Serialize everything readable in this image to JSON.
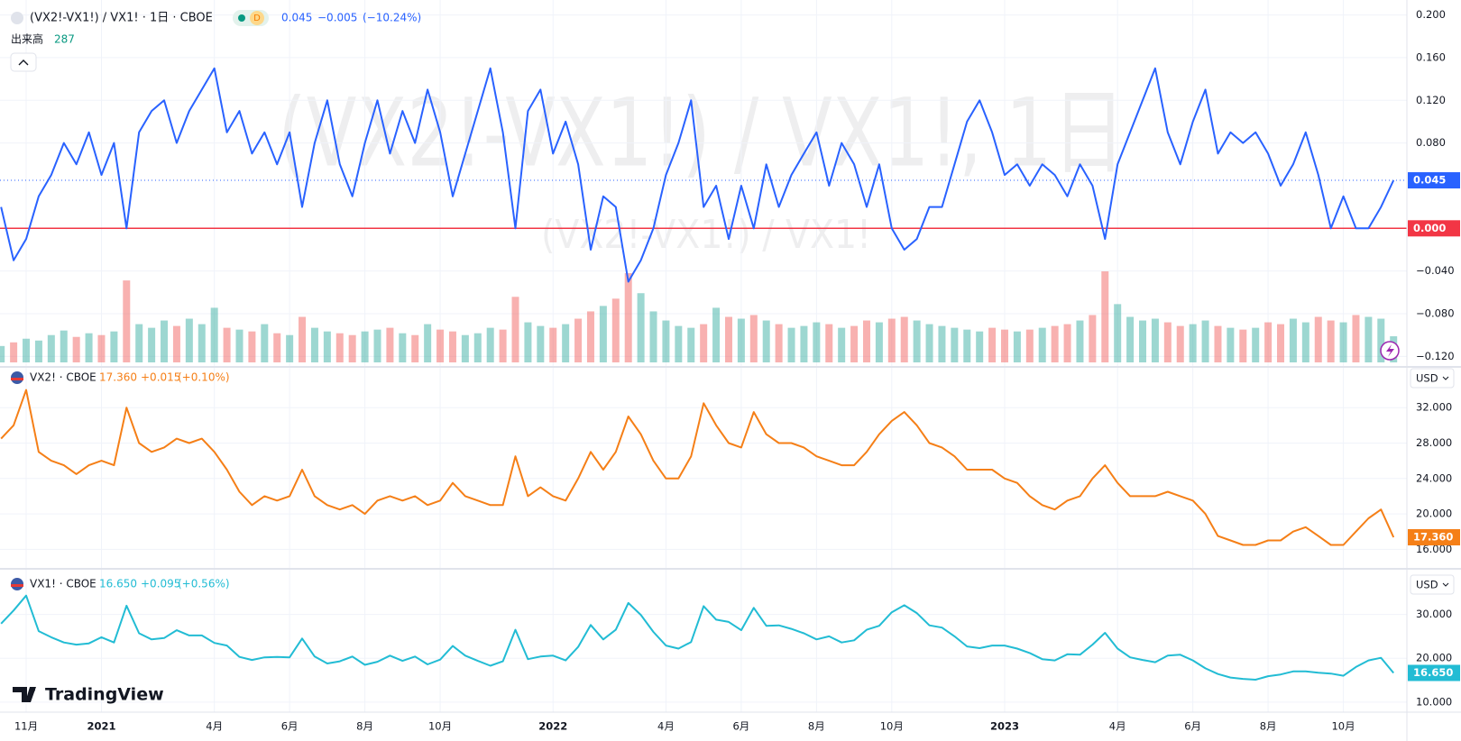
{
  "header": {
    "badge": "D",
    "change": "−0.005",
    "change_pct": "(−10.24%)"
  },
  "watermark": {
    "main": "(VX2!-VX1!) / VX1!, 1日",
    "sub": "(VX2!-VX1!) / VX1!"
  },
  "logo": "TradingView",
  "currency": "USD",
  "chart_data": [
    {
      "type": "line",
      "series": [
        {
          "name": "(VX2!-VX1!) / VX1! · 1日 · CBOE",
          "color": "#2962ff",
          "values": [
            0.02,
            -0.03,
            -0.01,
            0.03,
            0.05,
            0.08,
            0.06,
            0.09,
            0.05,
            0.08,
            0.0,
            0.09,
            0.11,
            0.12,
            0.08,
            0.11,
            0.13,
            0.15,
            0.09,
            0.11,
            0.07,
            0.09,
            0.06,
            0.09,
            0.02,
            0.08,
            0.12,
            0.06,
            0.03,
            0.08,
            0.12,
            0.07,
            0.11,
            0.08,
            0.13,
            0.09,
            0.03,
            0.07,
            0.11,
            0.15,
            0.09,
            0.0,
            0.11,
            0.13,
            0.07,
            0.1,
            0.06,
            -0.02,
            0.03,
            0.02,
            -0.05,
            -0.03,
            0.0,
            0.05,
            0.08,
            0.12,
            0.02,
            0.04,
            -0.01,
            0.04,
            0.0,
            0.06,
            0.02,
            0.05,
            0.07,
            0.09,
            0.04,
            0.08,
            0.06,
            0.02,
            0.06,
            0.0,
            -0.02,
            -0.01,
            0.02,
            0.02,
            0.06,
            0.1,
            0.12,
            0.09,
            0.05,
            0.06,
            0.04,
            0.06,
            0.05,
            0.03,
            0.06,
            0.04,
            -0.01,
            0.06,
            0.09,
            0.12,
            0.15,
            0.09,
            0.06,
            0.1,
            0.13,
            0.07,
            0.09,
            0.08,
            0.09,
            0.07,
            0.04,
            0.06,
            0.09,
            0.05,
            0.0,
            0.03,
            0.0,
            0.0,
            0.02,
            0.045
          ]
        }
      ],
      "volume": {
        "name": "出来高",
        "up_color": "#26a69a",
        "down_color": "#ef5350",
        "values": [
          180,
          220,
          260,
          240,
          300,
          350,
          280,
          320,
          300,
          340,
          900,
          420,
          380,
          460,
          400,
          480,
          420,
          600,
          380,
          360,
          340,
          420,
          320,
          300,
          500,
          380,
          340,
          320,
          300,
          340,
          360,
          380,
          320,
          300,
          420,
          360,
          340,
          300,
          320,
          380,
          360,
          720,
          440,
          400,
          380,
          420,
          480,
          560,
          620,
          700,
          980,
          760,
          560,
          460,
          400,
          380,
          420,
          600,
          500,
          480,
          520,
          460,
          420,
          380,
          400,
          440,
          420,
          380,
          400,
          460,
          440,
          480,
          500,
          460,
          420,
          400,
          380,
          360,
          340,
          380,
          360,
          340,
          360,
          380,
          400,
          420,
          460,
          520,
          1000,
          640,
          500,
          460,
          480,
          440,
          400,
          420,
          460,
          400,
          380,
          360,
          380,
          440,
          420,
          480,
          440,
          500,
          460,
          440,
          520,
          500,
          480,
          287
        ]
      },
      "zero_line": {
        "value": 0,
        "label": "0.000",
        "color": "#f23645"
      },
      "ylim": [
        -0.129,
        0.214
      ],
      "yticks": [
        {
          "value": 0.2,
          "label": "0.200"
        },
        {
          "value": 0.16,
          "label": "0.160"
        },
        {
          "value": 0.12,
          "label": "0.120"
        },
        {
          "value": 0.08,
          "label": "0.080"
        },
        {
          "value": -0.04,
          "label": "−0.040"
        },
        {
          "value": -0.08,
          "label": "−0.080"
        },
        {
          "value": -0.12,
          "label": "−0.120"
        }
      ],
      "grid": true
    },
    {
      "type": "line",
      "series": [
        {
          "name": "VX2! · CBOE",
          "color": "#f57f17",
          "values": [
            28.5,
            30,
            34,
            27,
            26,
            25.5,
            24.5,
            25.5,
            26,
            25.5,
            32,
            28,
            27,
            27.5,
            28.5,
            28,
            28.5,
            27,
            25,
            22.5,
            21,
            22,
            21.5,
            22,
            25,
            22,
            21,
            20.5,
            21,
            20,
            21.5,
            22,
            21.5,
            22,
            21,
            21.5,
            23.5,
            22,
            21.5,
            21,
            21,
            26.5,
            22,
            23,
            22,
            21.5,
            24,
            27,
            25,
            27,
            31,
            29,
            26,
            24,
            24,
            26.5,
            32.5,
            30,
            28,
            27.5,
            31.5,
            29,
            28,
            28,
            27.5,
            26.5,
            26,
            25.5,
            25.5,
            27,
            29,
            30.5,
            31.5,
            30,
            28,
            27.5,
            26.5,
            25,
            25,
            25,
            24,
            23.5,
            22,
            21,
            20.5,
            21.5,
            22,
            24,
            25.5,
            23.5,
            22,
            22,
            22,
            22.5,
            22,
            21.5,
            20,
            17.5,
            17,
            16.5,
            16.5,
            17,
            17,
            18,
            18.5,
            17.5,
            16.5,
            16.5,
            18,
            19.5,
            20.5,
            17.36
          ]
        }
      ],
      "last_label": "17.360",
      "change": "+0.015",
      "change_pct": "(+0.10%)",
      "ylim": [
        13.9,
        36.5
      ],
      "yticks": [
        {
          "value": 32,
          "label": "32.000"
        },
        {
          "value": 28,
          "label": "28.000"
        },
        {
          "value": 24,
          "label": "24.000"
        },
        {
          "value": 20,
          "label": "20.000"
        },
        {
          "value": 16,
          "label": "16.000"
        }
      ],
      "grid": true
    },
    {
      "type": "line",
      "categories": [
        null,
        null,
        "11月",
        null,
        null,
        null,
        null,
        null,
        "2021",
        null,
        null,
        null,
        null,
        null,
        null,
        null,
        null,
        "4月",
        null,
        null,
        null,
        null,
        null,
        "6月",
        null,
        null,
        null,
        null,
        null,
        "8月",
        null,
        null,
        null,
        null,
        null,
        "10月",
        null,
        null,
        null,
        null,
        null,
        null,
        null,
        null,
        "2022",
        null,
        null,
        null,
        null,
        null,
        null,
        null,
        null,
        "4月",
        null,
        null,
        null,
        null,
        null,
        "6月",
        null,
        null,
        null,
        null,
        null,
        "8月",
        null,
        null,
        null,
        null,
        null,
        "10月",
        null,
        null,
        null,
        null,
        null,
        null,
        null,
        null,
        "2023",
        null,
        null,
        null,
        null,
        null,
        null,
        null,
        null,
        "4月",
        null,
        null,
        null,
        null,
        null,
        "6月",
        null,
        null,
        null,
        null,
        null,
        "8月",
        null,
        null,
        null,
        null,
        null,
        "10月",
        null,
        null,
        null,
        null
      ],
      "series": [
        {
          "name": "VX1! · CBOE",
          "color": "#22bcd4",
          "values": [
            27.9,
            30.9,
            34.3,
            26.2,
            24.8,
            23.6,
            23.1,
            23.4,
            24.8,
            23.6,
            32,
            25.7,
            24.3,
            24.6,
            26.4,
            25.2,
            25.2,
            23.5,
            22.9,
            20.3,
            19.6,
            20.2,
            20.3,
            20.2,
            24.5,
            20.4,
            18.8,
            19.3,
            20.4,
            18.5,
            19.2,
            20.6,
            19.4,
            20.4,
            18.6,
            19.7,
            22.8,
            20.6,
            19.4,
            18.3,
            19.3,
            26.5,
            19.8,
            20.4,
            20.6,
            19.5,
            22.6,
            27.6,
            24.3,
            26.5,
            32.6,
            29.9,
            26,
            22.9,
            22.2,
            23.7,
            31.9,
            28.8,
            28.3,
            26.4,
            31.5,
            27.4,
            27.5,
            26.7,
            25.7,
            24.3,
            25,
            23.6,
            24.1,
            26.5,
            27.4,
            30.5,
            32.1,
            30.3,
            27.5,
            27,
            25,
            22.7,
            22.3,
            22.9,
            22.9,
            22.2,
            21.2,
            19.8,
            19.5,
            20.9,
            20.8,
            23.1,
            25.8,
            22.2,
            20.2,
            19.6,
            19.1,
            20.6,
            20.8,
            19.5,
            17.7,
            16.4,
            15.6,
            15.3,
            15.1,
            15.9,
            16.3,
            17,
            17,
            16.7,
            16.5,
            16,
            18,
            19.5,
            20.1,
            16.65
          ]
        }
      ],
      "last_label": "16.650",
      "change": "+0.095",
      "change_pct": "(+0.56%)",
      "ylim": [
        7.7,
        40.2
      ],
      "yticks": [
        {
          "value": 30,
          "label": "30.000"
        },
        {
          "value": 20,
          "label": "20.000"
        },
        {
          "value": 10,
          "label": "10.000"
        }
      ],
      "grid": true
    }
  ]
}
